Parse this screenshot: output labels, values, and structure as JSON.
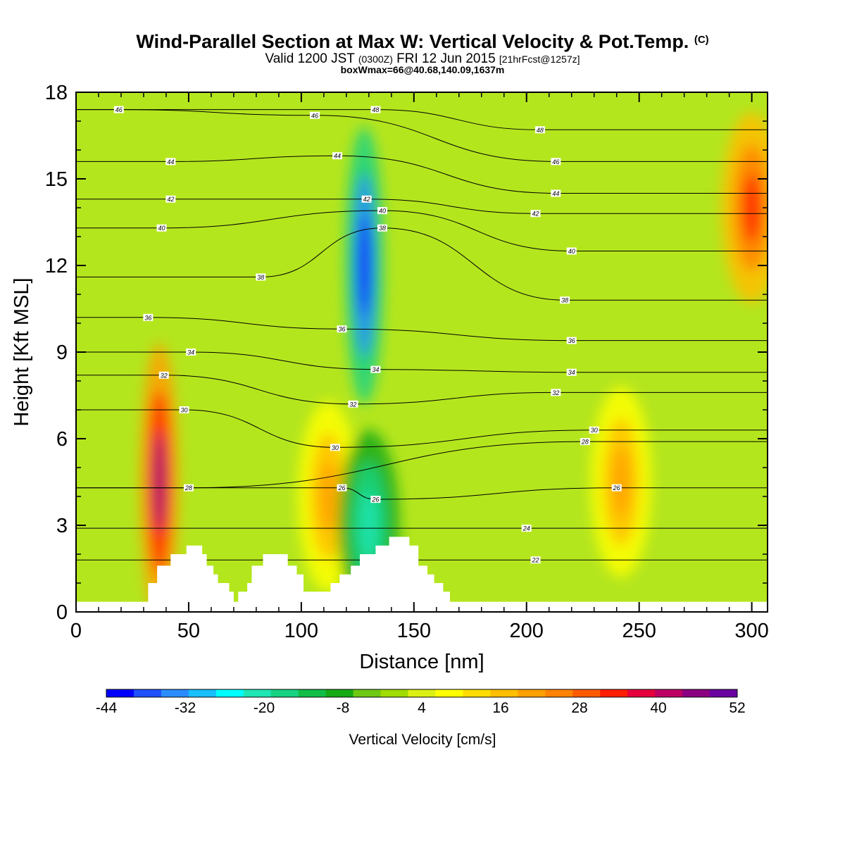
{
  "title": {
    "main": "Wind-Parallel Section at Max W: Vertical Velocity & Pot.Temp.",
    "main_suffix": "(C)",
    "valid_prefix": "Valid 1200 JST",
    "valid_utc": "(0300Z)",
    "valid_date": "FRI 12 Jun 2015",
    "forecast": "[21hrFcst@1257z]",
    "box_info": "boxWmax=66@40.68,140.09,1637m"
  },
  "chart_data": {
    "type": "heatmap",
    "xlabel": "Distance [nm]",
    "ylabel": "Height [Kft MSL]",
    "xlim": [
      0,
      307
    ],
    "ylim": [
      0,
      18
    ],
    "x_ticks": [
      0,
      50,
      100,
      150,
      200,
      250,
      300
    ],
    "y_ticks": [
      0,
      3,
      6,
      9,
      12,
      15,
      18
    ],
    "colorbar": {
      "label": "Vertical Velocity [cm/s]",
      "min": -44,
      "max": 52,
      "step": 4,
      "tick_labels": [
        "-44",
        "-32",
        "-20",
        "-8",
        "4",
        "16",
        "28",
        "40",
        "52"
      ],
      "colors": [
        "#0000ff",
        "#1e50ff",
        "#2a8cff",
        "#18c0ff",
        "#00ffff",
        "#20e6b4",
        "#16d282",
        "#12be46",
        "#14aa14",
        "#6ec814",
        "#a0dc00",
        "#dcf014",
        "#ffff00",
        "#ffdc00",
        "#ffbe00",
        "#ffa000",
        "#ff8200",
        "#ff5a00",
        "#ff1e00",
        "#e6003c",
        "#be0064",
        "#8c0082",
        "#6a00a0"
      ]
    },
    "features": [
      {
        "name": "strong updraft",
        "x": 37,
        "y": 4.5,
        "w_max": 40
      },
      {
        "name": "updraft",
        "x": 112,
        "y": 4,
        "w_max": 16
      },
      {
        "name": "upper downdraft",
        "x": 128,
        "y": 12,
        "w_min": -44
      },
      {
        "name": "low downdraft",
        "x": 130,
        "y": 3,
        "w_min": -24
      },
      {
        "name": "updraft",
        "x": 242,
        "y": 4.5,
        "w_max": 16
      },
      {
        "name": "upper-right updraft",
        "x": 300,
        "y": 14,
        "w_max": 28
      }
    ],
    "terrain_kft": [
      [
        0,
        0.35
      ],
      [
        32,
        0.35
      ],
      [
        32,
        1
      ],
      [
        36,
        1
      ],
      [
        36,
        1.6
      ],
      [
        42,
        1.6
      ],
      [
        42,
        2
      ],
      [
        49,
        2
      ],
      [
        49,
        2.3
      ],
      [
        56,
        2.3
      ],
      [
        56,
        2
      ],
      [
        58,
        2
      ],
      [
        58,
        1.6
      ],
      [
        61,
        1.6
      ],
      [
        61,
        1.3
      ],
      [
        63,
        1.3
      ],
      [
        63,
        1
      ],
      [
        68,
        1
      ],
      [
        68,
        0.7
      ],
      [
        70,
        0.7
      ],
      [
        70,
        0.35
      ],
      [
        72,
        0.35
      ],
      [
        72,
        0.7
      ],
      [
        76,
        0.7
      ],
      [
        76,
        1
      ],
      [
        78,
        1
      ],
      [
        78,
        1.6
      ],
      [
        83,
        1.6
      ],
      [
        83,
        2
      ],
      [
        94,
        2
      ],
      [
        94,
        1.6
      ],
      [
        98,
        1.6
      ],
      [
        98,
        1.3
      ],
      [
        101,
        1.3
      ],
      [
        101,
        0.7
      ],
      [
        113,
        0.7
      ],
      [
        113,
        1
      ],
      [
        117,
        1
      ],
      [
        117,
        1.3
      ],
      [
        122,
        1.3
      ],
      [
        122,
        1.6
      ],
      [
        126,
        1.6
      ],
      [
        126,
        2
      ],
      [
        133,
        2
      ],
      [
        133,
        2.3
      ],
      [
        139,
        2.3
      ],
      [
        139,
        2.6
      ],
      [
        148,
        2.6
      ],
      [
        148,
        2.3
      ],
      [
        152,
        2.3
      ],
      [
        152,
        1.6
      ],
      [
        156,
        1.6
      ],
      [
        156,
        1.3
      ],
      [
        159,
        1.3
      ],
      [
        159,
        1
      ],
      [
        163,
        1
      ],
      [
        163,
        0.7
      ],
      [
        166,
        0.7
      ],
      [
        166,
        0.35
      ],
      [
        307,
        0.35
      ]
    ],
    "theta_isolines_C": [
      {
        "label": "22",
        "x": 204,
        "y": 1.8
      },
      {
        "label": "24",
        "x": 200,
        "y": 2.9
      },
      {
        "label": "26",
        "x": 118,
        "y": 4.3
      },
      {
        "label": "26",
        "x": 133,
        "y": 3.9
      },
      {
        "label": "26",
        "x": 240,
        "y": 4.3
      },
      {
        "label": "28",
        "x": 50,
        "y": 4.3
      },
      {
        "label": "28",
        "x": 226,
        "y": 5.9
      },
      {
        "label": "30",
        "x": 48,
        "y": 7
      },
      {
        "label": "30",
        "x": 115,
        "y": 5.7
      },
      {
        "label": "30",
        "x": 230,
        "y": 6.3
      },
      {
        "label": "32",
        "x": 39,
        "y": 8.2
      },
      {
        "label": "32",
        "x": 123,
        "y": 7.2
      },
      {
        "label": "32",
        "x": 213,
        "y": 7.6
      },
      {
        "label": "34",
        "x": 51,
        "y": 9
      },
      {
        "label": "34",
        "x": 133,
        "y": 8.4
      },
      {
        "label": "34",
        "x": 220,
        "y": 8.3
      },
      {
        "label": "36",
        "x": 32,
        "y": 10.2
      },
      {
        "label": "36",
        "x": 118,
        "y": 9.8
      },
      {
        "label": "36",
        "x": 220,
        "y": 9.4
      },
      {
        "label": "38",
        "x": 82,
        "y": 11.6
      },
      {
        "label": "38",
        "x": 217,
        "y": 10.8
      },
      {
        "label": "38",
        "x": 136,
        "y": 13.3
      },
      {
        "label": "40",
        "x": 38,
        "y": 13.3
      },
      {
        "label": "40",
        "x": 220,
        "y": 12.5
      },
      {
        "label": "40",
        "x": 136,
        "y": 13.9
      },
      {
        "label": "42",
        "x": 42,
        "y": 14.3
      },
      {
        "label": "42",
        "x": 129,
        "y": 14.3
      },
      {
        "label": "42",
        "x": 204,
        "y": 13.8
      },
      {
        "label": "44",
        "x": 42,
        "y": 15.6
      },
      {
        "label": "44",
        "x": 116,
        "y": 15.8
      },
      {
        "label": "44",
        "x": 213,
        "y": 14.5
      },
      {
        "label": "46",
        "x": 106,
        "y": 17.2
      },
      {
        "label": "46",
        "x": 213,
        "y": 15.6
      },
      {
        "label": "46",
        "x": 19,
        "y": 17.4
      },
      {
        "label": "48",
        "x": 133,
        "y": 17.4
      },
      {
        "label": "48",
        "x": 206,
        "y": 16.7
      }
    ]
  }
}
